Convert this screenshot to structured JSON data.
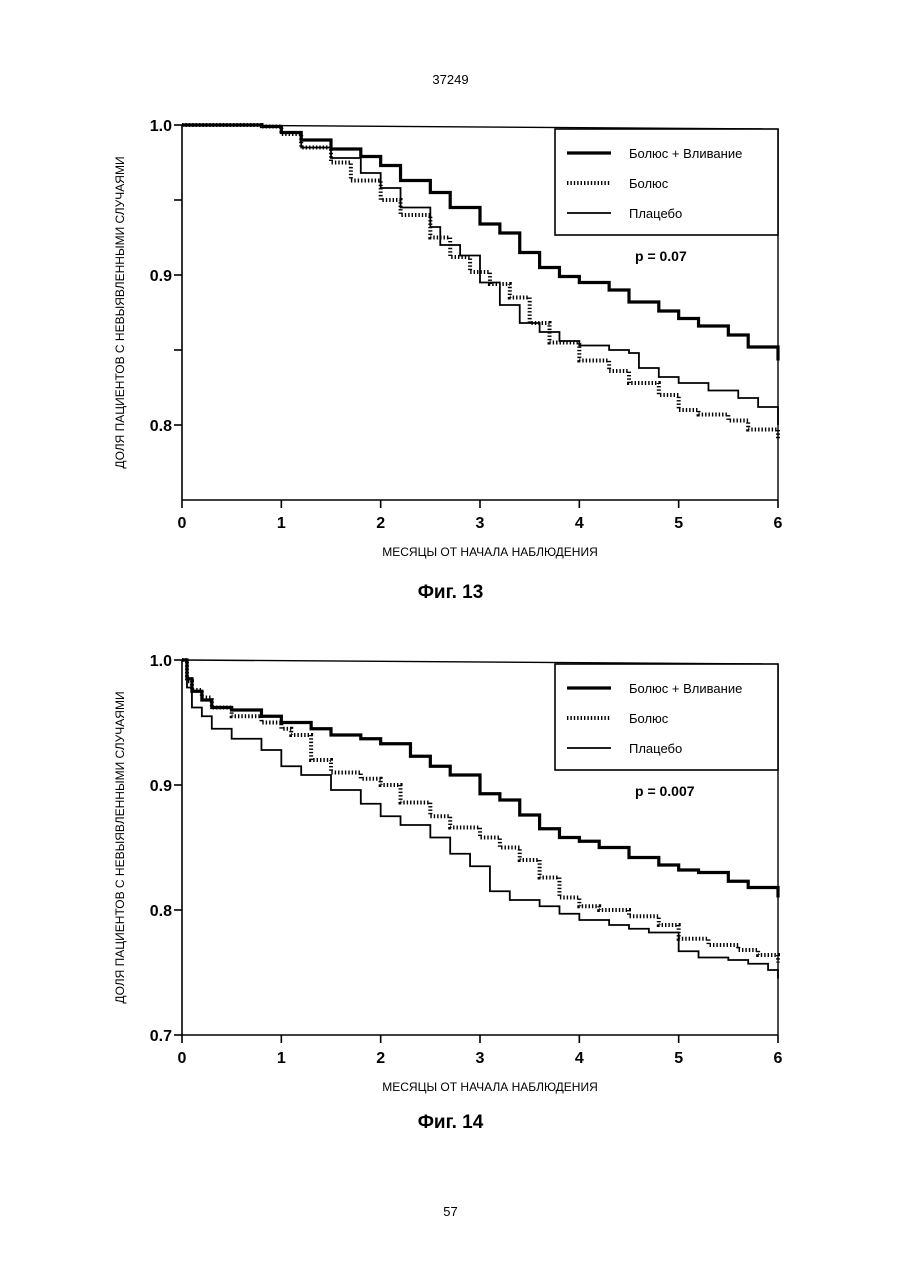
{
  "page": {
    "header_number": "37249",
    "footer_number": "57"
  },
  "chart_data": [
    {
      "type": "line",
      "caption": "Фиг. 13",
      "xlabel": "МЕСЯЦЫ ОТ НАЧАЛА НАБЛЮДЕНИЯ",
      "ylabel": "ДОЛЯ ПАЦИЕНТОВ С НЕВЫЯВЛЕННЫМИ СЛУЧАЯМИ",
      "xlim": [
        0,
        6
      ],
      "ylim": [
        0.75,
        1.0
      ],
      "xticks": [
        "0",
        "1",
        "2",
        "3",
        "4",
        "5",
        "6"
      ],
      "yticks": [
        {
          "value": 1.0,
          "label": "1.0"
        },
        {
          "value": 0.9,
          "label": "0.9"
        },
        {
          "value": 0.8,
          "label": "0.8"
        }
      ],
      "yminor": [
        0.95,
        0.85
      ],
      "annotation": "p = 0.07",
      "legend_position": "top-right",
      "series": [
        {
          "name": "Болюс + Вливание",
          "style": "thick",
          "x": [
            0,
            0.8,
            1.0,
            1.2,
            1.5,
            1.8,
            2.0,
            2.2,
            2.5,
            2.7,
            3.0,
            3.2,
            3.4,
            3.6,
            3.8,
            4.0,
            4.3,
            4.5,
            4.8,
            5.0,
            5.2,
            5.5,
            5.7,
            6.0
          ],
          "y": [
            1.0,
            0.999,
            0.995,
            0.99,
            0.984,
            0.979,
            0.973,
            0.963,
            0.955,
            0.945,
            0.934,
            0.928,
            0.915,
            0.905,
            0.899,
            0.895,
            0.89,
            0.882,
            0.876,
            0.871,
            0.866,
            0.86,
            0.852,
            0.843
          ]
        },
        {
          "name": "Болюс",
          "style": "hatched",
          "x": [
            0,
            0.8,
            1.0,
            1.2,
            1.5,
            1.7,
            2.0,
            2.2,
            2.5,
            2.7,
            2.9,
            3.1,
            3.3,
            3.5,
            3.7,
            4.0,
            4.3,
            4.5,
            4.8,
            5.0,
            5.2,
            5.5,
            5.7,
            6.0
          ],
          "y": [
            1.0,
            0.999,
            0.994,
            0.985,
            0.975,
            0.963,
            0.95,
            0.94,
            0.925,
            0.912,
            0.902,
            0.894,
            0.885,
            0.868,
            0.855,
            0.843,
            0.836,
            0.828,
            0.82,
            0.81,
            0.807,
            0.803,
            0.797,
            0.791
          ]
        },
        {
          "name": "Плацебо",
          "style": "medium",
          "x": [
            0,
            0.8,
            1.0,
            1.2,
            1.5,
            1.8,
            2.0,
            2.2,
            2.5,
            2.6,
            2.8,
            3.0,
            3.2,
            3.4,
            3.6,
            3.8,
            4.0,
            4.3,
            4.5,
            4.6,
            4.8,
            5.0,
            5.3,
            5.6,
            5.8,
            6.0
          ],
          "y": [
            1.0,
            0.999,
            0.995,
            0.985,
            0.978,
            0.968,
            0.958,
            0.945,
            0.932,
            0.92,
            0.913,
            0.895,
            0.88,
            0.868,
            0.862,
            0.856,
            0.853,
            0.85,
            0.848,
            0.838,
            0.832,
            0.828,
            0.823,
            0.818,
            0.812,
            0.8
          ]
        }
      ]
    },
    {
      "type": "line",
      "caption": "Фиг. 14",
      "xlabel": "МЕСЯЦЫ ОТ НАЧАЛА НАБЛЮДЕНИЯ",
      "ylabel": "ДОЛЯ ПАЦИЕНТОВ С НЕВЫЯВЛЕННЫМИ СЛУЧАЯМИ",
      "xlim": [
        0,
        6
      ],
      "ylim": [
        0.7,
        1.0
      ],
      "xticks": [
        "0",
        "1",
        "2",
        "3",
        "4",
        "5",
        "6"
      ],
      "yticks": [
        {
          "value": 1.0,
          "label": "1.0"
        },
        {
          "value": 0.9,
          "label": "0.9"
        },
        {
          "value": 0.8,
          "label": "0.8"
        },
        {
          "value": 0.7,
          "label": "0.7"
        }
      ],
      "yminor": [],
      "annotation": "p = 0.007",
      "legend_position": "top-right",
      "series": [
        {
          "name": "Болюс + Вливание",
          "style": "thick",
          "x": [
            0,
            0.05,
            0.1,
            0.2,
            0.3,
            0.5,
            0.8,
            1.0,
            1.3,
            1.5,
            1.8,
            2.0,
            2.3,
            2.5,
            2.7,
            3.0,
            3.2,
            3.4,
            3.6,
            3.8,
            4.0,
            4.2,
            4.5,
            4.8,
            5.0,
            5.2,
            5.5,
            5.7,
            6.0
          ],
          "y": [
            1.0,
            0.985,
            0.975,
            0.968,
            0.962,
            0.96,
            0.955,
            0.95,
            0.945,
            0.94,
            0.937,
            0.933,
            0.923,
            0.915,
            0.908,
            0.893,
            0.888,
            0.876,
            0.865,
            0.858,
            0.855,
            0.85,
            0.842,
            0.836,
            0.832,
            0.83,
            0.823,
            0.818,
            0.81
          ]
        },
        {
          "name": "Болюс",
          "style": "hatched",
          "x": [
            0,
            0.05,
            0.1,
            0.2,
            0.3,
            0.5,
            0.8,
            1.0,
            1.1,
            1.3,
            1.5,
            1.8,
            2.0,
            2.2,
            2.5,
            2.7,
            3.0,
            3.2,
            3.4,
            3.6,
            3.8,
            4.0,
            4.2,
            4.5,
            4.8,
            5.0,
            5.3,
            5.6,
            5.8,
            6.0
          ],
          "y": [
            1.0,
            0.983,
            0.976,
            0.97,
            0.962,
            0.955,
            0.95,
            0.945,
            0.94,
            0.92,
            0.91,
            0.905,
            0.9,
            0.886,
            0.875,
            0.866,
            0.858,
            0.85,
            0.84,
            0.826,
            0.81,
            0.803,
            0.8,
            0.795,
            0.788,
            0.777,
            0.772,
            0.768,
            0.764,
            0.758
          ]
        },
        {
          "name": "Плацебо",
          "style": "medium",
          "x": [
            0,
            0.05,
            0.1,
            0.2,
            0.3,
            0.5,
            0.8,
            1.0,
            1.2,
            1.5,
            1.8,
            2.0,
            2.2,
            2.5,
            2.7,
            2.9,
            3.1,
            3.3,
            3.6,
            3.8,
            4.0,
            4.3,
            4.5,
            4.7,
            5.0,
            5.2,
            5.5,
            5.7,
            5.9,
            6.0
          ],
          "y": [
            1.0,
            0.978,
            0.962,
            0.955,
            0.945,
            0.937,
            0.928,
            0.915,
            0.908,
            0.896,
            0.885,
            0.875,
            0.868,
            0.858,
            0.845,
            0.835,
            0.815,
            0.808,
            0.803,
            0.797,
            0.792,
            0.788,
            0.785,
            0.782,
            0.767,
            0.762,
            0.76,
            0.757,
            0.752,
            0.745
          ]
        }
      ]
    }
  ]
}
